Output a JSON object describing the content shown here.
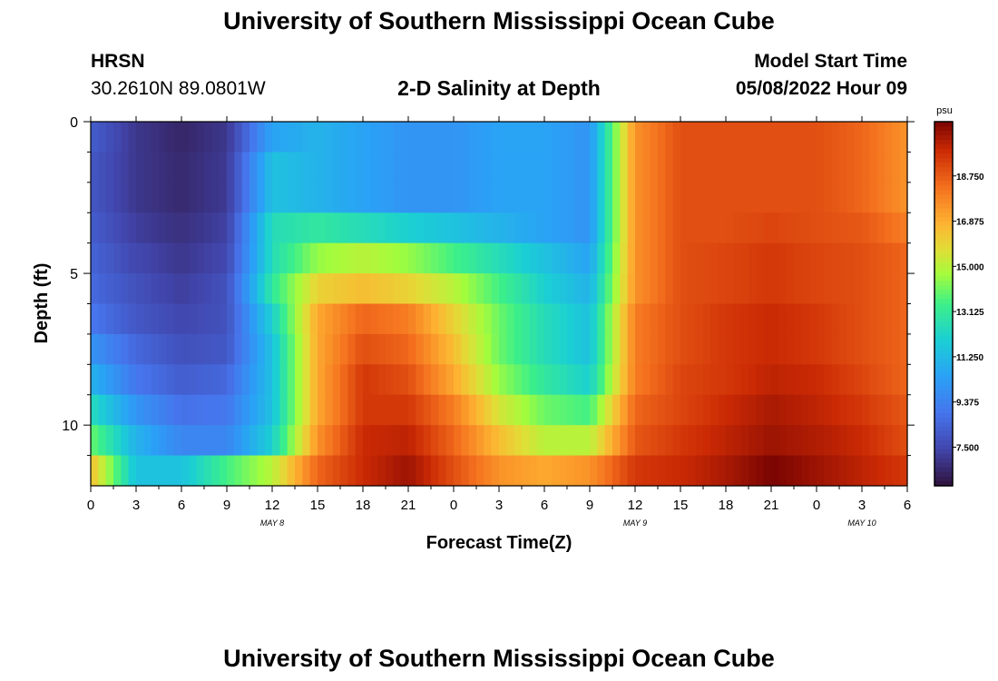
{
  "header": {
    "title": "University of Southern Mississippi Ocean Cube",
    "station_id": "HRSN",
    "coordinates": "30.2610N  89.0801W",
    "chart_title": "2-D Salinity at Depth",
    "model_start_label": "Model Start Time",
    "model_start_value": "05/08/2022 Hour 09"
  },
  "footer": {
    "title": "University of Southern Mississippi Ocean Cube"
  },
  "chart_data": {
    "type": "heatmap",
    "title": "2-D Salinity at Depth",
    "xlabel": "Forecast Time(Z)",
    "ylabel": "Depth (ft)",
    "x_range_hours": [
      0,
      54
    ],
    "x_ticks": [
      {
        "h": 0,
        "label": "0"
      },
      {
        "h": 3,
        "label": "3"
      },
      {
        "h": 6,
        "label": "6"
      },
      {
        "h": 9,
        "label": "9"
      },
      {
        "h": 12,
        "label": "12"
      },
      {
        "h": 15,
        "label": "15"
      },
      {
        "h": 18,
        "label": "18"
      },
      {
        "h": 21,
        "label": "21"
      },
      {
        "h": 24,
        "label": "0"
      },
      {
        "h": 27,
        "label": "3"
      },
      {
        "h": 30,
        "label": "6"
      },
      {
        "h": 33,
        "label": "9"
      },
      {
        "h": 36,
        "label": "12"
      },
      {
        "h": 39,
        "label": "15"
      },
      {
        "h": 42,
        "label": "18"
      },
      {
        "h": 45,
        "label": "21"
      },
      {
        "h": 48,
        "label": "0"
      },
      {
        "h": 51,
        "label": "3"
      },
      {
        "h": 54,
        "label": "6"
      }
    ],
    "date_labels": [
      {
        "h": 12,
        "label": "MAY 8"
      },
      {
        "h": 36,
        "label": "MAY 9"
      },
      {
        "h": 51,
        "label": "MAY 10"
      }
    ],
    "y_range_ft": [
      0,
      12
    ],
    "y_ticks": [
      {
        "v": 0,
        "label": "0"
      },
      {
        "v": 5,
        "label": "5"
      },
      {
        "v": 10,
        "label": "10"
      }
    ],
    "colorbar": {
      "unit": "psu",
      "range": [
        5.9,
        21.0
      ],
      "ticks": [
        {
          "v": 7.5,
          "label": "7.500"
        },
        {
          "v": 9.375,
          "label": "9.375"
        },
        {
          "v": 11.25,
          "label": "11.250"
        },
        {
          "v": 13.125,
          "label": "13.125"
        },
        {
          "v": 15.0,
          "label": "15.000"
        },
        {
          "v": 16.875,
          "label": "16.875"
        },
        {
          "v": 18.75,
          "label": "18.750"
        }
      ]
    },
    "grid_spec": {
      "hours": [
        0,
        3,
        6,
        9,
        12,
        15,
        18,
        21,
        24,
        27,
        30,
        33,
        36,
        39,
        42,
        45,
        48,
        51,
        54
      ],
      "depth_levels_ft": [
        0.5,
        1.5,
        2.5,
        3.5,
        4.5,
        5.5,
        6.5,
        7.5,
        8.5,
        9.5,
        10.5,
        11.5
      ],
      "salinity_psu": [
        [
          8.2,
          7.0,
          6.5,
          7.0,
          10.5,
          11.0,
          10.5,
          10.0,
          10.0,
          10.5,
          10.5,
          10.0,
          17.5,
          19.0,
          19.0,
          19.0,
          19.0,
          18.5,
          17.5
        ],
        [
          8.0,
          7.0,
          6.6,
          7.1,
          11.5,
          11.0,
          10.5,
          10.0,
          10.0,
          10.5,
          10.5,
          10.0,
          17.5,
          19.0,
          19.0,
          19.0,
          19.0,
          18.5,
          17.5
        ],
        [
          8.0,
          7.0,
          6.6,
          7.1,
          11.5,
          11.0,
          10.5,
          10.0,
          10.0,
          10.5,
          10.5,
          10.0,
          17.5,
          19.0,
          19.0,
          19.0,
          19.0,
          18.5,
          17.5
        ],
        [
          8.2,
          7.2,
          6.8,
          7.3,
          12.5,
          13.0,
          12.5,
          12.0,
          11.5,
          11.0,
          10.5,
          10.0,
          17.5,
          19.0,
          19.0,
          19.2,
          19.0,
          18.8,
          18.0
        ],
        [
          8.4,
          7.5,
          7.0,
          7.5,
          12.5,
          14.5,
          15.0,
          14.5,
          13.5,
          12.5,
          11.5,
          10.5,
          17.5,
          19.0,
          19.2,
          19.5,
          19.2,
          19.0,
          18.5
        ],
        [
          8.6,
          7.8,
          7.2,
          7.8,
          13.0,
          16.0,
          16.5,
          16.0,
          15.0,
          13.5,
          12.0,
          11.0,
          17.5,
          19.0,
          19.2,
          19.5,
          19.2,
          19.0,
          18.5
        ],
        [
          9.0,
          8.0,
          7.5,
          7.8,
          12.0,
          17.0,
          18.5,
          18.0,
          16.0,
          14.0,
          12.5,
          11.5,
          18.0,
          19.0,
          19.5,
          19.8,
          19.5,
          19.0,
          18.5
        ],
        [
          10.0,
          8.5,
          7.8,
          8.0,
          11.5,
          17.0,
          19.0,
          18.5,
          16.5,
          14.0,
          12.5,
          11.5,
          18.0,
          19.0,
          19.5,
          19.8,
          19.5,
          19.0,
          18.5
        ],
        [
          11.0,
          9.0,
          8.2,
          8.5,
          11.5,
          17.0,
          19.5,
          19.0,
          17.0,
          14.5,
          13.0,
          12.0,
          18.0,
          19.2,
          19.5,
          20.0,
          19.8,
          19.2,
          18.5
        ],
        [
          12.5,
          10.0,
          8.8,
          9.0,
          11.5,
          17.0,
          19.5,
          19.5,
          18.0,
          15.5,
          14.0,
          13.5,
          18.5,
          19.2,
          19.8,
          20.3,
          20.0,
          19.5,
          18.8
        ],
        [
          14.0,
          11.0,
          9.5,
          9.5,
          12.0,
          17.5,
          19.8,
          20.0,
          18.5,
          16.5,
          15.0,
          15.0,
          18.8,
          19.5,
          20.0,
          20.5,
          20.2,
          19.8,
          19.0
        ],
        [
          16.5,
          11.5,
          11.5,
          13.5,
          15.0,
          18.5,
          19.8,
          20.5,
          19.0,
          17.5,
          17.0,
          17.5,
          19.5,
          19.8,
          20.3,
          21.0,
          20.5,
          20.0,
          19.5
        ]
      ]
    }
  }
}
